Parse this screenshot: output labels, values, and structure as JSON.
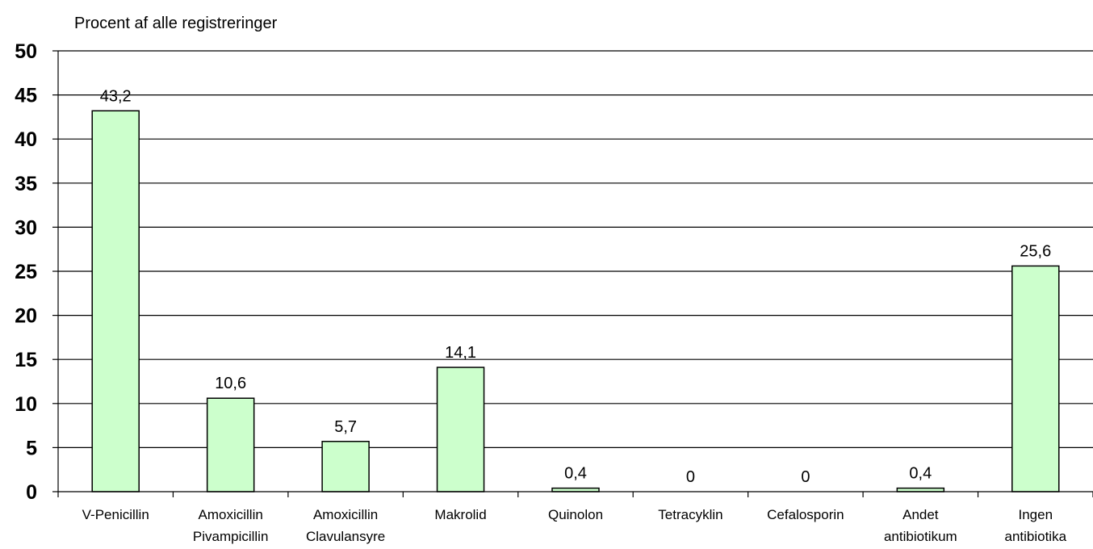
{
  "chart_data": {
    "type": "bar",
    "ylabel": "Procent af alle registreringer",
    "ylim": [
      0,
      50
    ],
    "yticks": [
      0,
      5,
      10,
      15,
      20,
      25,
      30,
      35,
      40,
      45,
      50
    ],
    "grid": true,
    "categories": [
      [
        "V-Penicillin"
      ],
      [
        "Amoxicillin",
        "Pivampicillin"
      ],
      [
        "Amoxicillin",
        "Clavulansyre"
      ],
      [
        "Makrolid"
      ],
      [
        "Quinolon"
      ],
      [
        "Tetracyklin"
      ],
      [
        "Cefalosporin"
      ],
      [
        "Andet",
        "antibiotikum"
      ],
      [
        "Ingen",
        "antibiotika"
      ]
    ],
    "values": [
      43.2,
      10.6,
      5.7,
      14.1,
      0.4,
      0,
      0,
      0.4,
      25.6
    ],
    "value_labels": [
      "43,2",
      "10,6",
      "5,7",
      "14,1",
      "0,4",
      "0",
      "0",
      "0,4",
      "25,6"
    ],
    "colors": {
      "bar_fill": "#ccffcc",
      "bar_stroke": "#000000",
      "grid": "#000000"
    }
  }
}
